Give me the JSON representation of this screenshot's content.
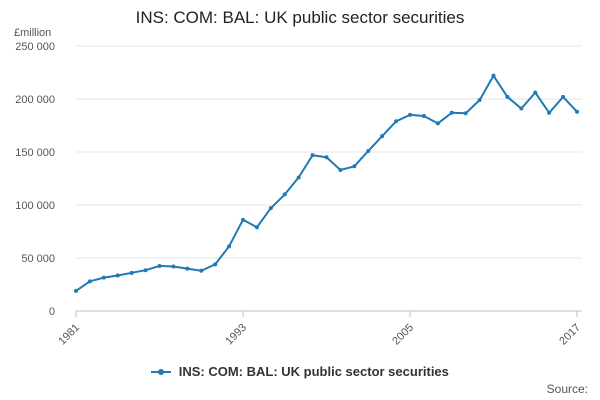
{
  "chart_data": {
    "type": "line",
    "title": "INS: COM: BAL: UK public sector securities",
    "unit_label": "£million",
    "ylim": [
      0,
      250000
    ],
    "y_ticks": [
      {
        "value": 0,
        "label": "0"
      },
      {
        "value": 50000,
        "label": "50 000"
      },
      {
        "value": 100000,
        "label": "100 000"
      },
      {
        "value": 150000,
        "label": "150 000"
      },
      {
        "value": 200000,
        "label": "200 000"
      },
      {
        "value": 250000,
        "label": "250 000"
      }
    ],
    "xlim": [
      1981,
      2017
    ],
    "x_ticks": [
      {
        "value": 1981,
        "label": "1981"
      },
      {
        "value": 1993,
        "label": "1993"
      },
      {
        "value": 2005,
        "label": "2005"
      },
      {
        "value": 2017,
        "label": "2017"
      }
    ],
    "grid": true,
    "legend_position": "bottom",
    "color": "#1f7ab5",
    "series": [
      {
        "name": "INS: COM: BAL: UK public sector securities",
        "x": [
          1981,
          1982,
          1983,
          1984,
          1985,
          1986,
          1987,
          1988,
          1989,
          1990,
          1991,
          1992,
          1993,
          1994,
          1995,
          1996,
          1997,
          1998,
          1999,
          2000,
          2001,
          2002,
          2003,
          2004,
          2005,
          2006,
          2007,
          2008,
          2009,
          2010,
          2011,
          2012,
          2013,
          2014,
          2015,
          2016,
          2017
        ],
        "values": [
          19000,
          28000,
          31500,
          33500,
          36000,
          38500,
          42500,
          42000,
          40000,
          38000,
          44000,
          61000,
          86000,
          79000,
          97000,
          110000,
          126000,
          147000,
          145000,
          133000,
          136500,
          151000,
          165000,
          179000,
          185000,
          184000,
          177000,
          187000,
          186500,
          199000,
          222000,
          202000,
          191000,
          206000,
          187000,
          202000,
          188000
        ]
      }
    ]
  },
  "legend": {
    "label": "INS: COM: BAL: UK public sector securities"
  },
  "source": {
    "label": "Source:"
  }
}
